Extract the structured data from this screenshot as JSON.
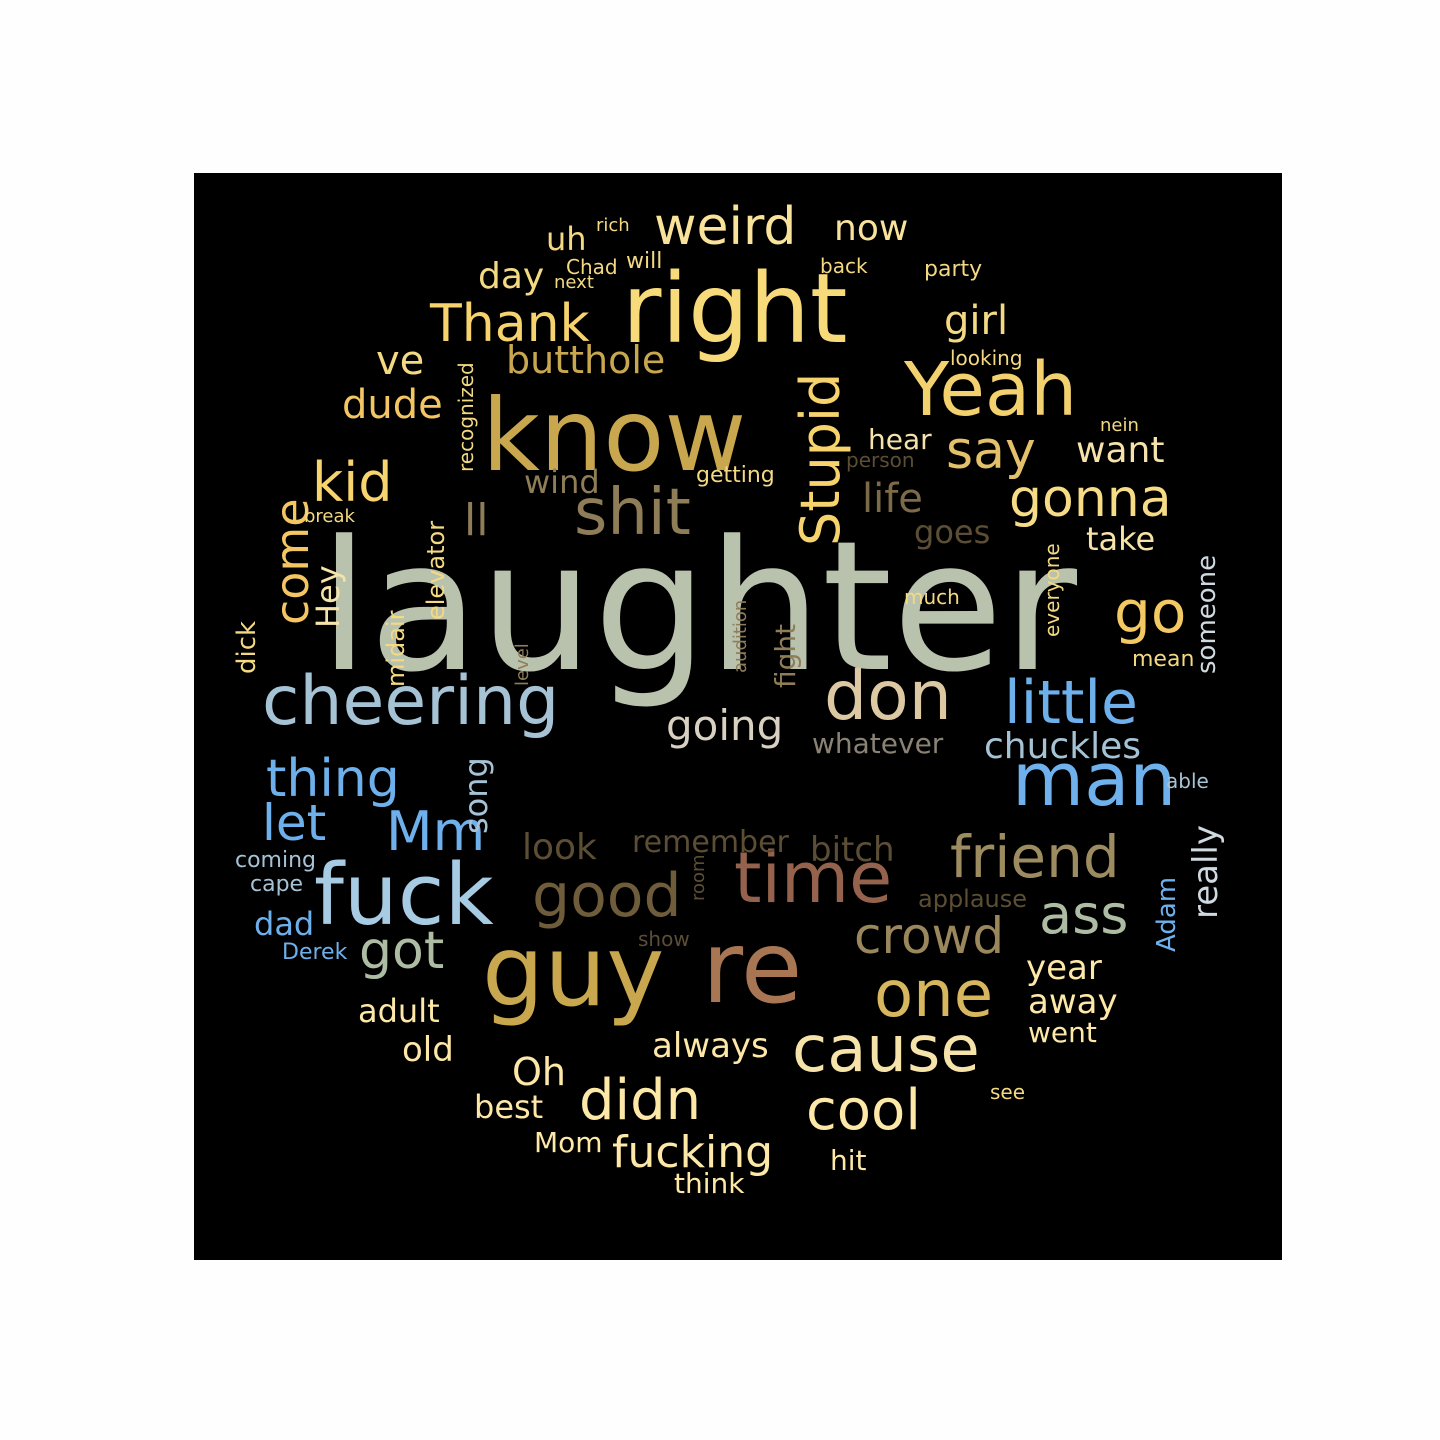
{
  "words": [
    {
      "text": "laughter",
      "color": "#b9c2ad"
    },
    {
      "text": "know",
      "color": "#c8a74f"
    },
    {
      "text": "right",
      "color": "#f7da79"
    },
    {
      "text": "guy",
      "color": "#c8a74f"
    },
    {
      "text": "re",
      "color": "#a97654"
    },
    {
      "text": "time",
      "color": "#95634d"
    },
    {
      "text": "cheering",
      "color": "#a6c3d6"
    },
    {
      "text": "fuck",
      "color": "#a6cbe3"
    },
    {
      "text": "man",
      "color": "#6fb1ec"
    },
    {
      "text": "Yeah",
      "color": "#f2d16e"
    },
    {
      "text": "shit",
      "color": "#8f7d58"
    },
    {
      "text": "don",
      "color": "#ddc8a4"
    },
    {
      "text": "good",
      "color": "#6e5c3a"
    },
    {
      "text": "one",
      "color": "#d7b75e"
    },
    {
      "text": "cause",
      "color": "#f6e3aa"
    },
    {
      "text": "friend",
      "color": "#9c8c60"
    },
    {
      "text": "little",
      "color": "#6db0ec"
    },
    {
      "text": "Stupid",
      "color": "#f7d36e"
    },
    {
      "text": "weird",
      "color": "#f9e39a"
    },
    {
      "text": "Thank",
      "color": "#f7d36e"
    },
    {
      "text": "gonna",
      "color": "#f6dc86"
    },
    {
      "text": "go",
      "color": "#f2c962"
    },
    {
      "text": "kid",
      "color": "#f7d46e"
    },
    {
      "text": "say",
      "color": "#e3c16a"
    },
    {
      "text": "thing",
      "color": "#6db0ec"
    },
    {
      "text": "Mm",
      "color": "#6db0ec"
    },
    {
      "text": "got",
      "color": "#aebca4"
    },
    {
      "text": "ass",
      "color": "#aebca4"
    },
    {
      "text": "crowd",
      "color": "#9a875c"
    },
    {
      "text": "didn",
      "color": "#fde8a7"
    },
    {
      "text": "cool",
      "color": "#fde8a7"
    },
    {
      "text": "come",
      "color": "#f4c663"
    },
    {
      "text": "ll",
      "color": "#8f7d58"
    },
    {
      "text": "butthole",
      "color": "#c8a74f"
    },
    {
      "text": "let",
      "color": "#6db0ec"
    },
    {
      "text": "chuckles",
      "color": "#a6c3d6"
    },
    {
      "text": "going",
      "color": "#d8d1c2"
    },
    {
      "text": "fucking",
      "color": "#fde8a7"
    },
    {
      "text": "life",
      "color": "#7d6a48"
    },
    {
      "text": "dude",
      "color": "#f4c663"
    },
    {
      "text": "ve",
      "color": "#f4d983"
    },
    {
      "text": "girl",
      "color": "#f4d983"
    },
    {
      "text": "now",
      "color": "#f9e39a"
    },
    {
      "text": "day",
      "color": "#f4d983"
    },
    {
      "text": "uh",
      "color": "#f4d983"
    },
    {
      "text": "want",
      "color": "#f6e3aa"
    },
    {
      "text": "take",
      "color": "#f6e3aa"
    },
    {
      "text": "hear",
      "color": "#f6e3aa"
    },
    {
      "text": "wind",
      "color": "#8f7d58"
    },
    {
      "text": "look",
      "color": "#5c4e34"
    },
    {
      "text": "remember",
      "color": "#5c4e34"
    },
    {
      "text": "bitch",
      "color": "#5c4e34"
    },
    {
      "text": "whatever",
      "color": "#8a8272"
    },
    {
      "text": "year",
      "color": "#fde8a7"
    },
    {
      "text": "away",
      "color": "#fde8a7"
    },
    {
      "text": "went",
      "color": "#fde8a7"
    },
    {
      "text": "adult",
      "color": "#fde8a7"
    },
    {
      "text": "old",
      "color": "#fde8a7"
    },
    {
      "text": "Oh",
      "color": "#fde8a7"
    },
    {
      "text": "best",
      "color": "#fde8a7"
    },
    {
      "text": "always",
      "color": "#fde8a7"
    },
    {
      "text": "Mom",
      "color": "#fde8a7"
    },
    {
      "text": "hit",
      "color": "#fde8a7"
    },
    {
      "text": "think",
      "color": "#fde8a7"
    },
    {
      "text": "dad",
      "color": "#6db0ec"
    },
    {
      "text": "Hey",
      "color": "#f6e3aa"
    },
    {
      "text": "song",
      "color": "#a6c3d6"
    },
    {
      "text": "really",
      "color": "#cfd9e0"
    },
    {
      "text": "someone",
      "color": "#cfd9e0"
    },
    {
      "text": "Adam",
      "color": "#6db0ec"
    },
    {
      "text": "goes",
      "color": "#5c4e34"
    },
    {
      "text": "applause",
      "color": "#5c4e34"
    },
    {
      "text": "midair",
      "color": "#f4d983"
    },
    {
      "text": "elevator",
      "color": "#f4d983"
    },
    {
      "text": "recognized",
      "color": "#f4d983"
    },
    {
      "text": "fight",
      "color": "#8f7d58"
    },
    {
      "text": "dick",
      "color": "#f4d983"
    },
    {
      "text": "level",
      "color": "#8f7d58"
    },
    {
      "text": "audition",
      "color": "#8f7d58"
    },
    {
      "text": "everyone",
      "color": "#f4d983"
    },
    {
      "text": "much",
      "color": "#f4d983"
    },
    {
      "text": "mean",
      "color": "#f4d983"
    },
    {
      "text": "able",
      "color": "#a6c3d6"
    },
    {
      "text": "coming",
      "color": "#a6c3d6"
    },
    {
      "text": "cape",
      "color": "#a6c3d6"
    },
    {
      "text": "Derek",
      "color": "#6db0ec"
    },
    {
      "text": "show",
      "color": "#5c4e34"
    },
    {
      "text": "room",
      "color": "#5c4e34"
    },
    {
      "text": "see",
      "color": "#f4d983"
    },
    {
      "text": "rich",
      "color": "#f4d983"
    },
    {
      "text": "Chad",
      "color": "#f4d983"
    },
    {
      "text": "will",
      "color": "#f4d983"
    },
    {
      "text": "next",
      "color": "#f4d983"
    },
    {
      "text": "back",
      "color": "#f4d983"
    },
    {
      "text": "party",
      "color": "#f4d983"
    },
    {
      "text": "looking",
      "color": "#f4d983"
    },
    {
      "text": "nein",
      "color": "#f4d983"
    },
    {
      "text": "person",
      "color": "#5c4e34"
    },
    {
      "text": "getting",
      "color": "#f4d983"
    },
    {
      "text": "break",
      "color": "#f4d983"
    }
  ]
}
